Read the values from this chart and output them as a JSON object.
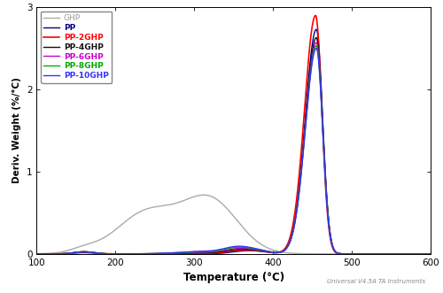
{
  "title": "",
  "xlabel": "Temperature (°C)",
  "ylabel": "Deriv. Weight (%/°C)",
  "xlim": [
    100,
    600
  ],
  "ylim": [
    0,
    3
  ],
  "xticks": [
    100,
    200,
    300,
    400,
    500,
    600
  ],
  "yticks": [
    0,
    1,
    2,
    3
  ],
  "watermark": "Universal V4.5A TA Instruments",
  "series": [
    {
      "label": "GHP",
      "color": "#aaaaaa",
      "lw": 1.0
    },
    {
      "label": "PP",
      "color": "#00008b",
      "lw": 1.0
    },
    {
      "label": "PP-2GHP",
      "color": "#ff0000",
      "lw": 1.2
    },
    {
      "label": "PP-4GHP",
      "color": "#111111",
      "lw": 1.0
    },
    {
      "label": "PP-6GHP",
      "color": "#cc00cc",
      "lw": 1.0
    },
    {
      "label": "PP-8GHP",
      "color": "#00aa00",
      "lw": 1.0
    },
    {
      "label": "PP-10GHP",
      "color": "#3333ff",
      "lw": 1.0
    }
  ]
}
